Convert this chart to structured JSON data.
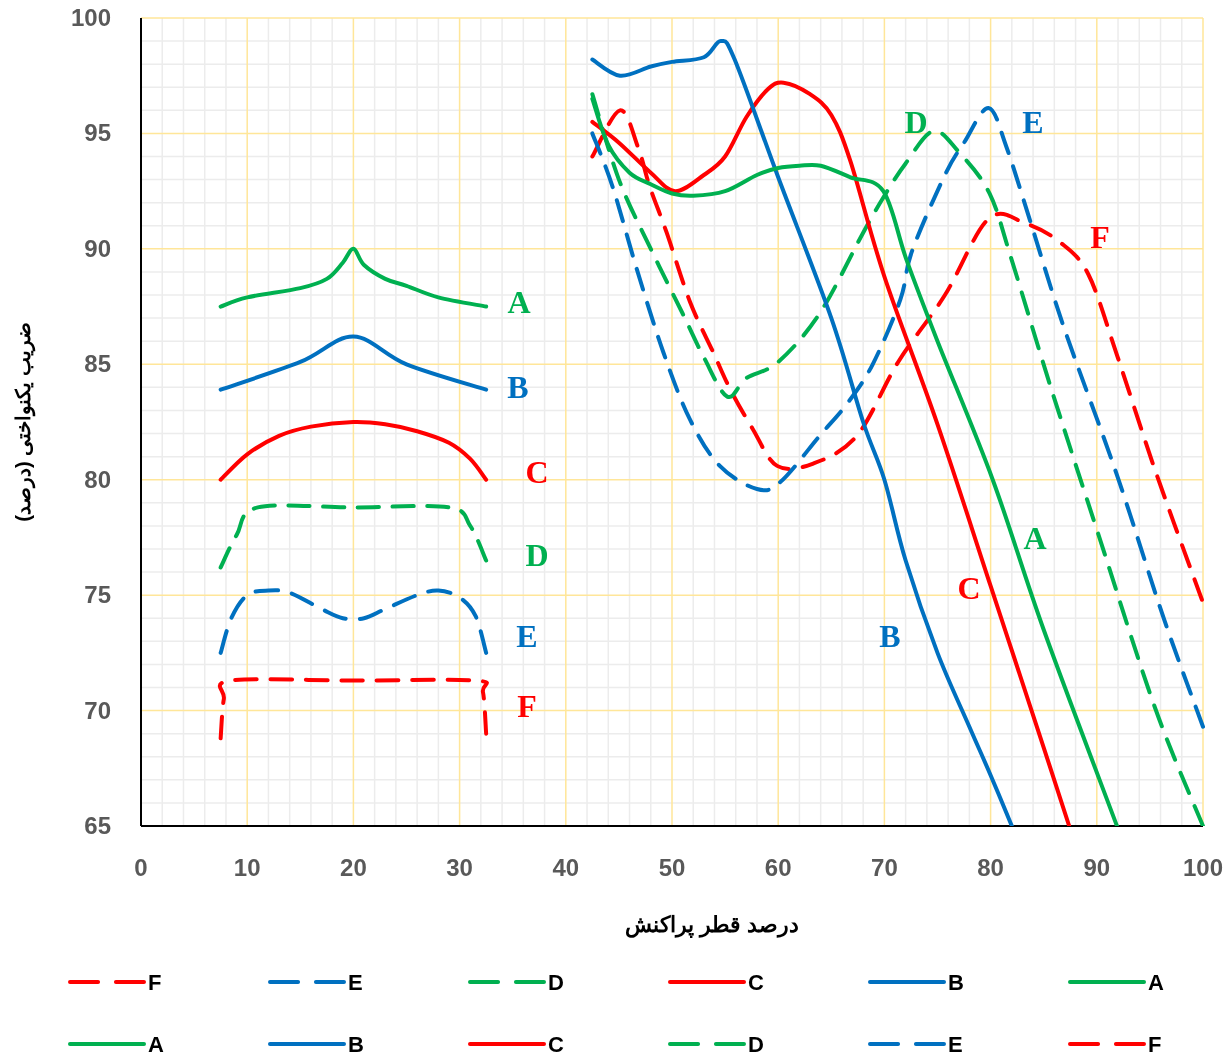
{
  "chart_data": {
    "type": "line",
    "xlabel": "درصد قطر پراکنش",
    "ylabel": "ضریب یکنواختی (درصد)",
    "xlim": [
      0,
      100
    ],
    "ylim": [
      65,
      100
    ],
    "xticks": [
      0,
      10,
      20,
      30,
      40,
      50,
      60,
      70,
      80,
      90,
      100
    ],
    "yticks": [
      65,
      70,
      75,
      80,
      85,
      90,
      95,
      100
    ],
    "grid": true,
    "legend": "bottom",
    "marker": "none",
    "series": [
      {
        "name": "F",
        "color": "#ff0000",
        "line_style": "dashed",
        "x": [
          42.5,
          45.1,
          46.8,
          47.9,
          49.5,
          51.7,
          53.9,
          55.5,
          57.6,
          59.9,
          63.3,
          67.4,
          71.3,
          75.7,
          79.8,
          83.3,
          86.5,
          89.2,
          91.9,
          95.5,
          99.9
        ],
        "values": [
          94.0,
          96.0,
          94.4,
          92.7,
          90.7,
          87.7,
          85.5,
          83.9,
          82.2,
          80.6,
          80.7,
          81.9,
          85.1,
          88.0,
          91.3,
          91.1,
          90.3,
          88.9,
          85.4,
          80.4,
          74.8
        ]
      },
      {
        "name": "E",
        "color": "#0070c0",
        "line_style": "dashed",
        "x": [
          42.5,
          44.4,
          46.7,
          49.2,
          51.7,
          54.5,
          58,
          60.2,
          63.9,
          66.5,
          68.9,
          71.5,
          72.6,
          75.7,
          77.5,
          79.8,
          81.5,
          83.8,
          86.9,
          91.9,
          96.3,
          100
        ],
        "values": [
          95.0,
          92.7,
          89.1,
          85.5,
          82.6,
          80.6,
          79.6,
          79.9,
          81.9,
          83.3,
          85.0,
          87.8,
          89.9,
          93.2,
          94.6,
          96.1,
          94.4,
          91.1,
          86.6,
          80.2,
          74.0,
          69.3
        ]
      },
      {
        "name": "D",
        "color": "#00b050",
        "line_style": "dashed",
        "x": [
          42.5,
          45,
          48,
          51,
          53,
          55.2,
          57,
          60,
          63.9,
          68,
          70,
          72,
          74.6,
          77,
          79.9,
          82,
          85.6,
          90.1,
          95.5,
          100
        ],
        "values": [
          96.7,
          93.0,
          90.0,
          87.2,
          85.3,
          83.6,
          84.4,
          85.1,
          87.2,
          90.7,
          92.3,
          93.7,
          95.1,
          94.2,
          92.4,
          89.5,
          84.1,
          77.7,
          70.1,
          65.0
        ]
      },
      {
        "name": "C",
        "color": "#ff0000",
        "line_style": "solid",
        "x": [
          42.5,
          45,
          48,
          50.3,
          53,
          55,
          57,
          59,
          60.5,
          63,
          65,
          66.8,
          70,
          75,
          80,
          85,
          87.4
        ],
        "values": [
          95.5,
          94.6,
          93.3,
          92.5,
          93.2,
          94.0,
          95.7,
          96.9,
          97.2,
          96.7,
          95.8,
          93.8,
          88.8,
          82.4,
          75.4,
          68.4,
          65.0
        ]
      },
      {
        "name": "B",
        "color": "#0070c0",
        "line_style": "solid",
        "x": [
          42.5,
          45.1,
          48,
          50,
          53,
          54.6,
          55.9,
          60,
          65,
          68,
          70,
          72,
          75,
          78,
          80,
          82
        ],
        "values": [
          98.2,
          97.5,
          97.9,
          98.1,
          98.3,
          99.0,
          98.2,
          93.1,
          87.0,
          82.5,
          80.0,
          76.5,
          72.5,
          69.3,
          67.2,
          65.0
        ]
      },
      {
        "name": "A",
        "color": "#00b050",
        "line_style": "solid",
        "x": [
          42.5,
          44,
          46,
          48,
          50,
          52,
          55,
          58,
          60,
          62,
          64,
          66.8,
          69.9,
          72.1,
          75,
          80.2,
          85,
          91.9
        ],
        "values": [
          96.5,
          94.5,
          93.3,
          92.8,
          92.4,
          92.3,
          92.5,
          93.2,
          93.5,
          93.6,
          93.6,
          93.1,
          92.5,
          89.5,
          86.0,
          80.0,
          73.5,
          65.0
        ]
      },
      {
        "name": "A",
        "color": "#00b050",
        "line_style": "solid",
        "x": [
          7.5,
          10,
          15,
          17.5,
          19,
          20,
          21,
          23,
          25,
          28,
          32.5
        ],
        "values": [
          87.5,
          87.9,
          88.3,
          88.7,
          89.4,
          90.0,
          89.3,
          88.7,
          88.4,
          87.9,
          87.5
        ]
      },
      {
        "name": "B",
        "color": "#0070c0",
        "line_style": "solid",
        "x": [
          7.5,
          15,
          20,
          25,
          32.5
        ],
        "values": [
          83.9,
          85.1,
          86.2,
          85.0,
          83.9
        ]
      },
      {
        "name": "C",
        "color": "#ff0000",
        "line_style": "solid",
        "x": [
          7.5,
          10,
          13,
          16,
          20,
          23,
          26,
          29,
          31,
          32.5
        ],
        "values": [
          80.0,
          81.1,
          81.9,
          82.3,
          82.5,
          82.4,
          82.1,
          81.6,
          80.9,
          80.0
        ]
      },
      {
        "name": "D",
        "color": "#00b050",
        "line_style": "dashed",
        "x": [
          7.5,
          9,
          11,
          20,
          29,
          31,
          32.5
        ],
        "values": [
          76.2,
          77.6,
          78.8,
          78.8,
          78.8,
          78.0,
          76.5
        ]
      },
      {
        "name": "E",
        "color": "#0070c0",
        "line_style": "dashed",
        "x": [
          7.5,
          8.5,
          10,
          12,
          14,
          17,
          19,
          21,
          23,
          26,
          28,
          30,
          31.5,
          32.5
        ],
        "values": [
          72.5,
          74.0,
          75.0,
          75.2,
          75.1,
          74.4,
          74.0,
          74.0,
          74.4,
          75.0,
          75.2,
          74.9,
          74.1,
          72.5
        ]
      },
      {
        "name": "F",
        "color": "#ff0000",
        "line_style": "dashed",
        "x": [
          7.5,
          7.8,
          8.5,
          20,
          31.5,
          32.2,
          32.5
        ],
        "values": [
          68.8,
          70.5,
          71.3,
          71.3,
          71.3,
          70.8,
          69.0
        ]
      }
    ]
  }
}
